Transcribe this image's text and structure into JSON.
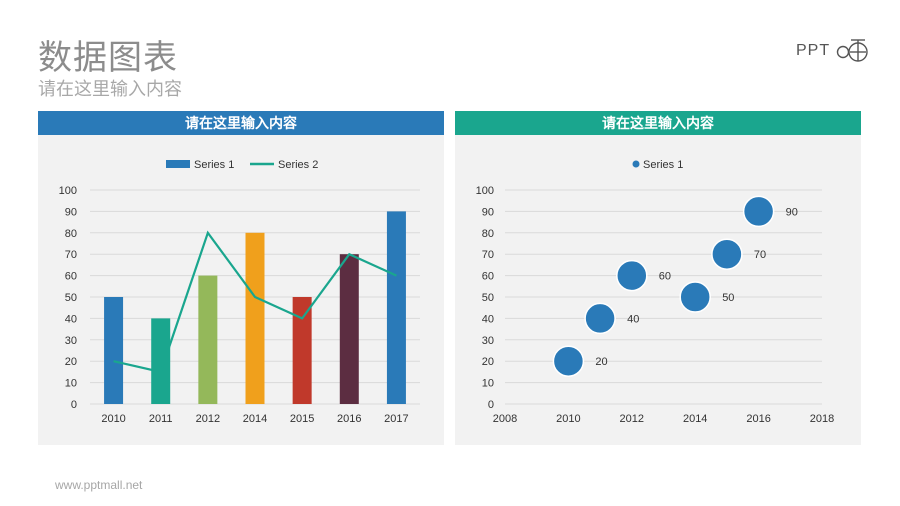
{
  "page": {
    "title": "数据图表",
    "subtitle": "请在这里输入内容",
    "logo_text": "PPT",
    "footer": "www.pptmall.net"
  },
  "colors": {
    "left_header": "#2a7ab8",
    "right_header": "#1aa68e",
    "line_series": "#1aa68e",
    "bubble": "#2a7ab8"
  },
  "chart_data": [
    {
      "type": "bar",
      "header": "请在这里输入内容",
      "categories": [
        "2010",
        "2011",
        "2012",
        "2014",
        "2015",
        "2016",
        "2017"
      ],
      "series": [
        {
          "name": "Series 1",
          "kind": "bar",
          "values": [
            50,
            40,
            60,
            80,
            50,
            70,
            90
          ],
          "colors": [
            "#2a7ab8",
            "#1aa68e",
            "#94b85a",
            "#f0a01c",
            "#c0392b",
            "#5c2d41",
            "#2a7ab8"
          ]
        },
        {
          "name": "Series 2",
          "kind": "line",
          "values": [
            20,
            15,
            80,
            50,
            40,
            70,
            60
          ]
        }
      ],
      "ylim": [
        0,
        100
      ],
      "yticks": [
        0,
        10,
        20,
        30,
        40,
        50,
        60,
        70,
        80,
        90,
        100
      ],
      "legend": "top-center",
      "grid": true
    },
    {
      "type": "scatter",
      "header": "请在这里输入内容",
      "series": [
        {
          "name": "Series 1",
          "x": [
            2010,
            2011,
            2012,
            2014,
            2015,
            2016
          ],
          "y": [
            20,
            40,
            60,
            50,
            70,
            90
          ],
          "labels": [
            "20",
            "40",
            "60",
            "50",
            "70",
            "90"
          ]
        }
      ],
      "xlim": [
        2008,
        2018
      ],
      "xticks": [
        2008,
        2010,
        2012,
        2014,
        2016,
        2018
      ],
      "ylim": [
        0,
        100
      ],
      "yticks": [
        0,
        10,
        20,
        30,
        40,
        50,
        60,
        70,
        80,
        90,
        100
      ],
      "legend": "top-center",
      "grid": true
    }
  ]
}
